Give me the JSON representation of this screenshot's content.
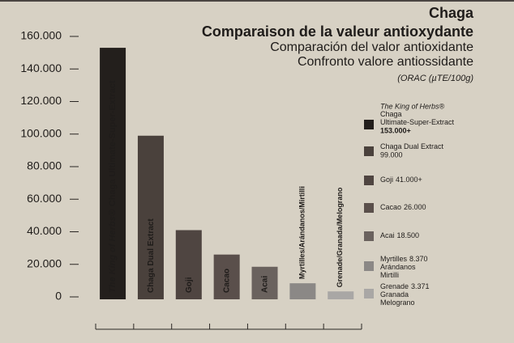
{
  "chart_data": {
    "type": "bar",
    "title": "Chaga",
    "subtitle": "Comparaison de la valeur antioxydante",
    "subtitle_lines": [
      "Comparación del valor antioxidante",
      "Confronto valore antiossidante"
    ],
    "unit": "(ORAC (µTE/100g)",
    "brand": "The King of Herbs®",
    "categories": [
      "Chaga Ultimate-Super-Extract",
      "Chaga Dual Extract",
      "Goji",
      "Cacao",
      "Acai",
      "Myrtilles/Arándanos/Mirtilli",
      "Grenade/Granada/Melograno"
    ],
    "values": [
      153000,
      99000,
      41000,
      26000,
      18500,
      8370,
      3371
    ],
    "value_labels": [
      "153.000+",
      "99.000",
      "41.000+",
      "26.000",
      "18.500",
      "8.370",
      "3.371"
    ],
    "colors": [
      "#231f1c",
      "#4a413c",
      "#4f4541",
      "#5a4f4b",
      "#6a625e",
      "#8b8886",
      "#a9a7a5"
    ],
    "legend": [
      [
        "Chaga",
        "Ultimate-Super-Extract"
      ],
      [
        "Chaga Dual Extract"
      ],
      [
        "Goji"
      ],
      [
        "Cacao"
      ],
      [
        "Acai"
      ],
      [
        "Myrtilles",
        "Arándanos",
        "Mirtilli"
      ],
      [
        "Grenade",
        "Granada",
        "Melograno"
      ]
    ],
    "ylim": [
      0,
      160000
    ],
    "yticks": [
      0,
      {
        "value": 20000,
        "label": "20.000"
      },
      {
        "value": 40000,
        "label": "40.000"
      },
      {
        "value": 60000,
        "label": "60.000"
      },
      {
        "value": 80000,
        "label": "80.000"
      },
      {
        "value": 100000,
        "label": "100.000"
      },
      {
        "value": 120000,
        "label": "120.000"
      },
      {
        "value": 140000,
        "label": "140.000"
      },
      {
        "value": 160000,
        "label": "160.000"
      }
    ]
  }
}
